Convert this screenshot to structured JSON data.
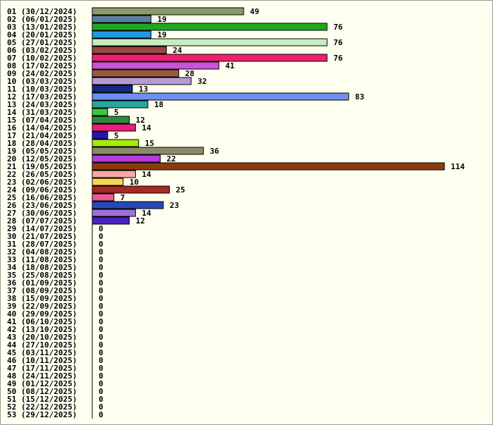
{
  "chart_data": {
    "type": "bar",
    "orientation": "horizontal",
    "title": "",
    "xlabel": "",
    "ylabel": "",
    "xlim": [
      0,
      114
    ],
    "grid": false,
    "categories": [
      "01 (30/12/2024)",
      "02 (06/01/2025)",
      "03 (13/01/2025)",
      "04 (20/01/2025)",
      "05 (27/01/2025)",
      "06 (03/02/2025)",
      "07 (10/02/2025)",
      "08 (17/02/2025)",
      "09 (24/02/2025)",
      "10 (03/03/2025)",
      "11 (10/03/2025)",
      "12 (17/03/2025)",
      "13 (24/03/2025)",
      "14 (31/03/2025)",
      "15 (07/04/2025)",
      "16 (14/04/2025)",
      "17 (21/04/2025)",
      "18 (28/04/2025)",
      "19 (05/05/2025)",
      "20 (12/05/2025)",
      "21 (19/05/2025)",
      "22 (26/05/2025)",
      "23 (02/06/2025)",
      "24 (09/06/2025)",
      "25 (16/06/2025)",
      "26 (23/06/2025)",
      "27 (30/06/2025)",
      "28 (07/07/2025)",
      "29 (14/07/2025)",
      "30 (21/07/2025)",
      "31 (28/07/2025)",
      "32 (04/08/2025)",
      "33 (11/08/2025)",
      "34 (18/08/2025)",
      "35 (25/08/2025)",
      "36 (01/09/2025)",
      "37 (08/09/2025)",
      "38 (15/09/2025)",
      "39 (22/09/2025)",
      "40 (29/09/2025)",
      "41 (06/10/2025)",
      "42 (13/10/2025)",
      "43 (20/10/2025)",
      "44 (27/10/2025)",
      "45 (03/11/2025)",
      "46 (10/11/2025)",
      "47 (17/11/2025)",
      "48 (24/11/2025)",
      "49 (01/12/2025)",
      "50 (08/12/2025)",
      "51 (15/12/2025)",
      "52 (22/12/2025)",
      "53 (29/12/2025)"
    ],
    "values": [
      49,
      19,
      76,
      19,
      76,
      24,
      76,
      41,
      28,
      32,
      13,
      83,
      18,
      5,
      12,
      14,
      5,
      15,
      36,
      22,
      114,
      14,
      10,
      25,
      7,
      23,
      14,
      12,
      0,
      0,
      0,
      0,
      0,
      0,
      0,
      0,
      0,
      0,
      0,
      0,
      0,
      0,
      0,
      0,
      0,
      0,
      0,
      0,
      0,
      0,
      0,
      0,
      0
    ],
    "value_labels": [
      "49",
      "19",
      "76",
      "19",
      "76",
      "24",
      "76",
      "41",
      "28",
      "32",
      "13",
      "83",
      "18",
      "5",
      "12",
      "14",
      "5",
      "15",
      "36",
      "22",
      "114",
      "14",
      "10",
      "25",
      "7",
      "23",
      "14",
      "12",
      "0",
      "0",
      "0",
      "0",
      "0",
      "0",
      "0",
      "0",
      "0",
      "0",
      "0",
      "0",
      "0",
      "0",
      "0",
      "0",
      "0",
      "0",
      "0",
      "0",
      "0",
      "0",
      "0",
      "0",
      "0"
    ],
    "colors": [
      "#8b9a6b",
      "#5b7f9b",
      "#1fa81f",
      "#1e9be8",
      "#c8ecbf",
      "#9b4545",
      "#f0206e",
      "#c855d8",
      "#9a5a3a",
      "#b89ad2",
      "#142b80",
      "#6f8ff0",
      "#27a6a0",
      "#3fc43f",
      "#2f8a3d",
      "#e81e7a",
      "#2016b8",
      "#a6ea0e",
      "#8b8b6b",
      "#b43ae0",
      "#8b3b0b",
      "#f6a9a0",
      "#f6d454",
      "#a62a22",
      "#e85a95",
      "#2649b4",
      "#9a72d2",
      "#4a22c2",
      "#cccccc",
      "#cccccc",
      "#cccccc",
      "#cccccc",
      "#cccccc",
      "#cccccc",
      "#cccccc",
      "#cccccc",
      "#cccccc",
      "#cccccc",
      "#cccccc",
      "#cccccc",
      "#cccccc",
      "#cccccc",
      "#cccccc",
      "#cccccc",
      "#cccccc",
      "#cccccc",
      "#cccccc",
      "#cccccc",
      "#cccccc",
      "#cccccc",
      "#cccccc",
      "#cccccc",
      "#cccccc"
    ],
    "background_color": "#fffff0",
    "axis_color": "#000000"
  }
}
